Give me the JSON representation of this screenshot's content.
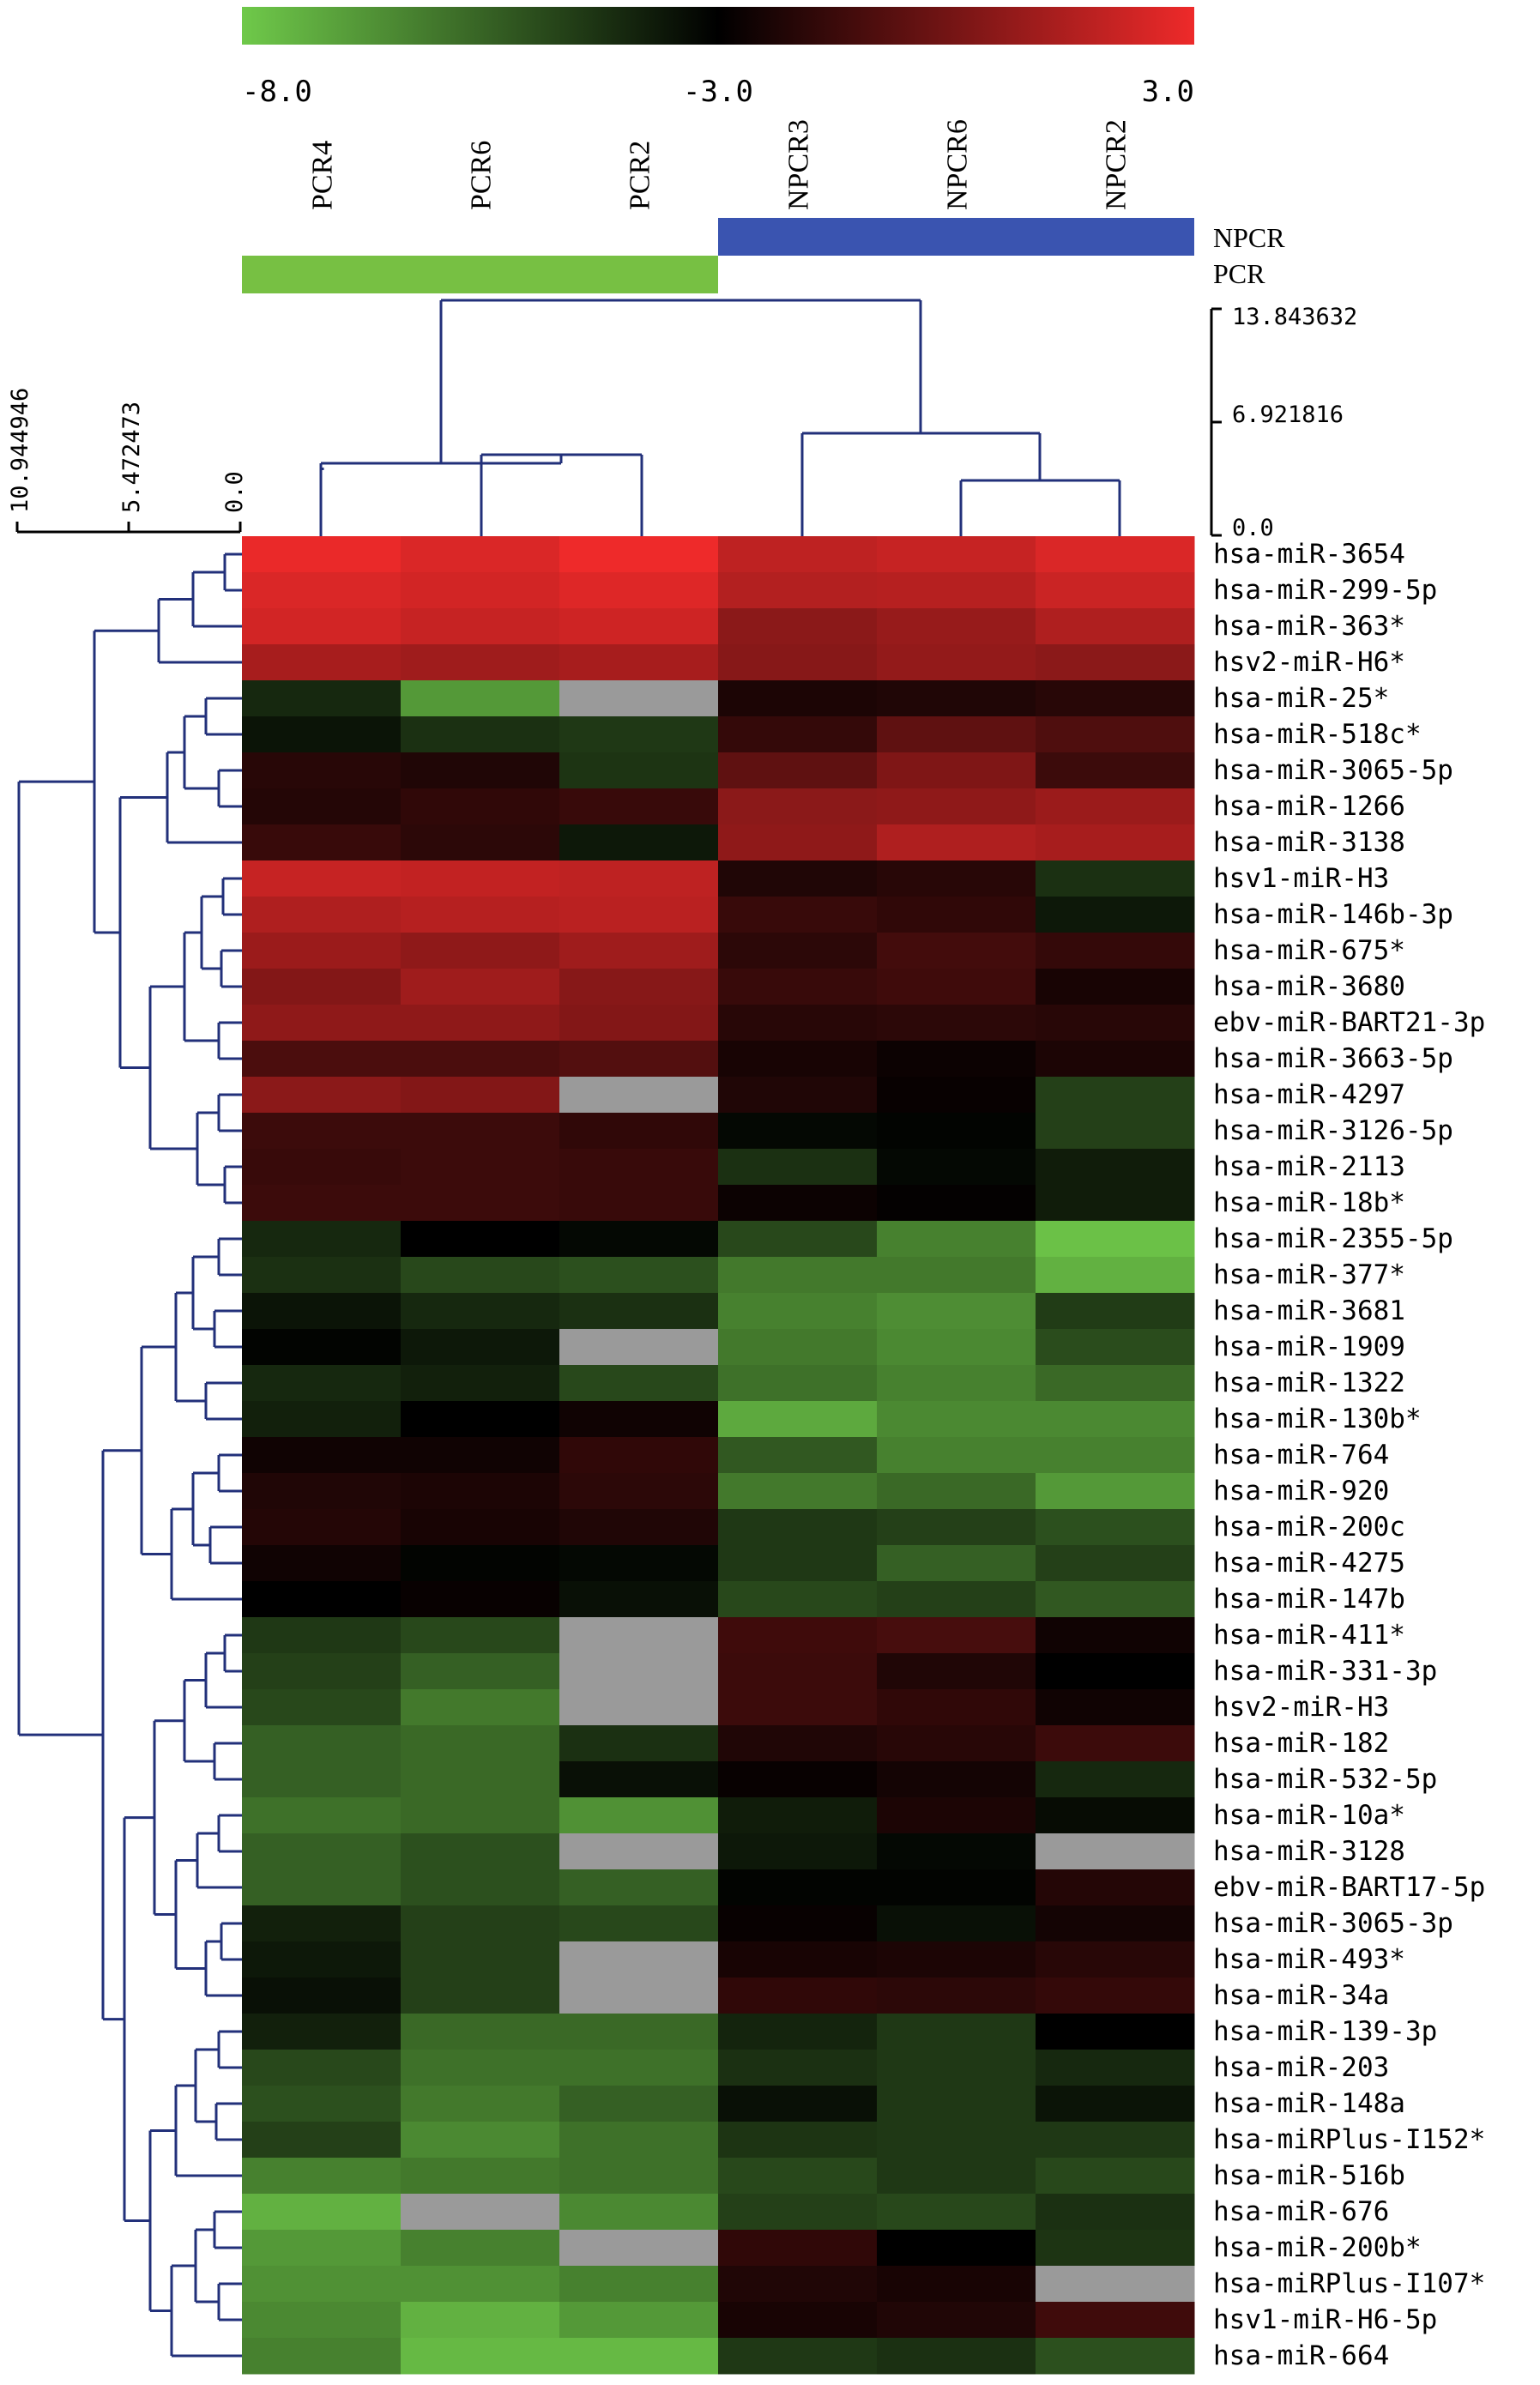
{
  "chart_data": {
    "type": "heatmap",
    "scale": {
      "min": -8.0,
      "mid": -3.0,
      "max": 3.0,
      "min_label": "-8.0",
      "mid_label": "-3.0",
      "max_label": "3.0",
      "colors": {
        "low": "#6fc94a",
        "mid": "#000000",
        "high": "#ee2a2a"
      }
    },
    "columns": [
      "PCR4",
      "PCR6",
      "PCR2",
      "NPCR3",
      "NPCR6",
      "NPCR2"
    ],
    "groups": [
      {
        "name": "NPCR",
        "color": "#3a54b0",
        "columns": [
          3,
          4,
          5
        ]
      },
      {
        "name": "PCR",
        "color": "#77c043",
        "columns": [
          0,
          1,
          2
        ]
      }
    ],
    "col_dendrogram_ticks": [
      "13.843632",
      "6.921816",
      "0.0"
    ],
    "row_dendrogram_ticks": [
      "10.944946",
      "5.472473",
      "0.0"
    ],
    "rows": [
      "hsa-miR-3654",
      "hsa-miR-299-5p",
      "hsa-miR-363*",
      "hsv2-miR-H6*",
      "hsa-miR-25*",
      "hsa-miR-518c*",
      "hsa-miR-3065-5p",
      "hsa-miR-1266",
      "hsa-miR-3138",
      "hsv1-miR-H3",
      "hsa-miR-146b-3p",
      "hsa-miR-675*",
      "hsa-miR-3680",
      "ebv-miR-BART21-3p",
      "hsa-miR-3663-5p",
      "hsa-miR-4297",
      "hsa-miR-3126-5p",
      "hsa-miR-2113",
      "hsa-miR-18b*",
      "hsa-miR-2355-5p",
      "hsa-miR-377*",
      "hsa-miR-3681",
      "hsa-miR-1909",
      "hsa-miR-1322",
      "hsa-miR-130b*",
      "hsa-miR-764",
      "hsa-miR-920",
      "hsa-miR-200c",
      "hsa-miR-4275",
      "hsa-miR-147b",
      "hsa-miR-411*",
      "hsa-miR-331-3p",
      "hsv2-miR-H3",
      "hsa-miR-182",
      "hsa-miR-532-5p",
      "hsa-miR-10a*",
      "hsa-miR-3128",
      "ebv-miR-BART17-5p",
      "hsa-miR-3065-3p",
      "hsa-miR-493*",
      "hsa-miR-34a",
      "hsa-miR-139-3p",
      "hsa-miR-203",
      "hsa-miR-148a",
      "hsa-miRPlus-I152*",
      "hsa-miR-516b",
      "hsa-miR-676",
      "hsa-miR-200b*",
      "hsa-miRPlus-I107*",
      "hsv1-miR-H6-5p",
      "hsa-miR-664"
    ],
    "values": [
      [
        2.9,
        2.5,
        3.0,
        1.8,
        2.0,
        2.5
      ],
      [
        2.5,
        2.3,
        2.6,
        1.5,
        1.6,
        2.1
      ],
      [
        2.3,
        2.0,
        2.2,
        0.5,
        0.8,
        1.4
      ],
      [
        1.2,
        1.0,
        1.2,
        0.4,
        0.7,
        0.5
      ],
      [
        -4.0,
        -6.8,
        null,
        -2.3,
        -2.2,
        -2.0
      ],
      [
        -3.5,
        -4.2,
        -4.4,
        -1.7,
        -0.6,
        -1.0
      ],
      [
        -2.0,
        -2.2,
        -4.3,
        -0.6,
        0.2,
        -1.5
      ],
      [
        -2.1,
        -1.8,
        -1.6,
        0.5,
        0.6,
        0.9
      ],
      [
        -1.6,
        -1.9,
        -3.6,
        0.6,
        1.4,
        1.2
      ],
      [
        2.0,
        1.9,
        1.8,
        -2.2,
        -2.0,
        -4.2
      ],
      [
        1.4,
        1.6,
        1.7,
        -1.6,
        -1.8,
        -3.6
      ],
      [
        0.9,
        0.6,
        1.0,
        -1.9,
        -1.3,
        -1.7
      ],
      [
        0.3,
        1.0,
        0.4,
        -1.6,
        -1.4,
        -2.4
      ],
      [
        0.6,
        0.6,
        0.3,
        -2.0,
        -1.9,
        -2.0
      ],
      [
        -1.1,
        -1.1,
        -0.9,
        -2.4,
        -2.7,
        -2.3
      ],
      [
        0.5,
        0.3,
        null,
        -2.2,
        -2.8,
        -4.6
      ],
      [
        -1.5,
        -1.5,
        -1.8,
        -3.2,
        -3.1,
        -4.6
      ],
      [
        -1.6,
        -1.5,
        -1.6,
        -4.2,
        -3.2,
        -3.7
      ],
      [
        -1.5,
        -1.5,
        -1.6,
        -2.7,
        -2.9,
        -3.7
      ],
      [
        -4.0,
        -3.0,
        -3.2,
        -4.8,
        -6.2,
        -7.8
      ],
      [
        -4.2,
        -4.8,
        -5.0,
        -6.0,
        -6.0,
        -7.4
      ],
      [
        -3.5,
        -4.0,
        -4.2,
        -6.2,
        -6.5,
        -4.5
      ],
      [
        -3.1,
        -3.6,
        null,
        -6.0,
        -6.4,
        -4.9
      ],
      [
        -4.0,
        -3.8,
        -4.8,
        -5.8,
        -6.2,
        -5.6
      ],
      [
        -3.8,
        -3.0,
        -2.6,
        -7.2,
        -6.4,
        -6.4
      ],
      [
        -2.6,
        -2.6,
        -1.8,
        -5.2,
        -6.2,
        -6.2
      ],
      [
        -2.2,
        -2.3,
        -1.9,
        -6.0,
        -5.6,
        -6.8
      ],
      [
        -2.1,
        -2.4,
        -2.2,
        -4.4,
        -4.6,
        -5.0
      ],
      [
        -2.6,
        -3.1,
        -3.2,
        -4.4,
        -5.4,
        -4.6
      ],
      [
        -3.0,
        -2.8,
        -3.4,
        -4.8,
        -4.6,
        -5.2
      ],
      [
        -4.4,
        -4.8,
        null,
        -1.4,
        -1.2,
        -2.6
      ],
      [
        -4.6,
        -5.4,
        null,
        -1.5,
        -2.2,
        -3.0
      ],
      [
        -4.8,
        -6.0,
        null,
        -1.5,
        -1.8,
        -2.6
      ],
      [
        -5.4,
        -5.6,
        -4.2,
        -2.2,
        -2.0,
        -1.5
      ],
      [
        -5.4,
        -5.6,
        -3.4,
        -2.8,
        -2.5,
        -4.0
      ],
      [
        -5.8,
        -5.6,
        -6.6,
        -3.7,
        -2.3,
        -3.3
      ],
      [
        -5.4,
        -5.0,
        null,
        -3.6,
        -3.2,
        null
      ],
      [
        -5.4,
        -5.0,
        -5.4,
        -3.1,
        -3.1,
        -2.1
      ],
      [
        -3.8,
        -4.6,
        -4.8,
        -2.8,
        -3.4,
        -2.5
      ],
      [
        -3.6,
        -4.6,
        null,
        -2.4,
        -2.3,
        -2.0
      ],
      [
        -3.4,
        -4.6,
        null,
        -1.8,
        -1.9,
        -1.7
      ],
      [
        -3.8,
        -5.6,
        -5.6,
        -3.9,
        -4.4,
        -3.0
      ],
      [
        -4.8,
        -5.8,
        -5.8,
        -4.2,
        -4.4,
        -4.0
      ],
      [
        -5.0,
        -6.0,
        -5.4,
        -3.4,
        -4.4,
        -3.5
      ],
      [
        -4.6,
        -6.4,
        -5.8,
        -4.3,
        -4.4,
        -4.4
      ],
      [
        -6.2,
        -6.0,
        -5.8,
        -4.8,
        -4.4,
        -4.8
      ],
      [
        -7.4,
        null,
        -6.4,
        -4.6,
        -4.8,
        -4.2
      ],
      [
        -6.8,
        -6.2,
        null,
        -1.8,
        -3.0,
        -4.3
      ],
      [
        -6.6,
        -6.6,
        -6.2,
        -2.2,
        -2.4,
        null
      ],
      [
        -6.4,
        -7.4,
        -6.8,
        -2.4,
        -2.2,
        -1.4
      ],
      [
        -6.2,
        -7.6,
        -7.6,
        -4.4,
        -4.2,
        -5.0
      ]
    ]
  }
}
